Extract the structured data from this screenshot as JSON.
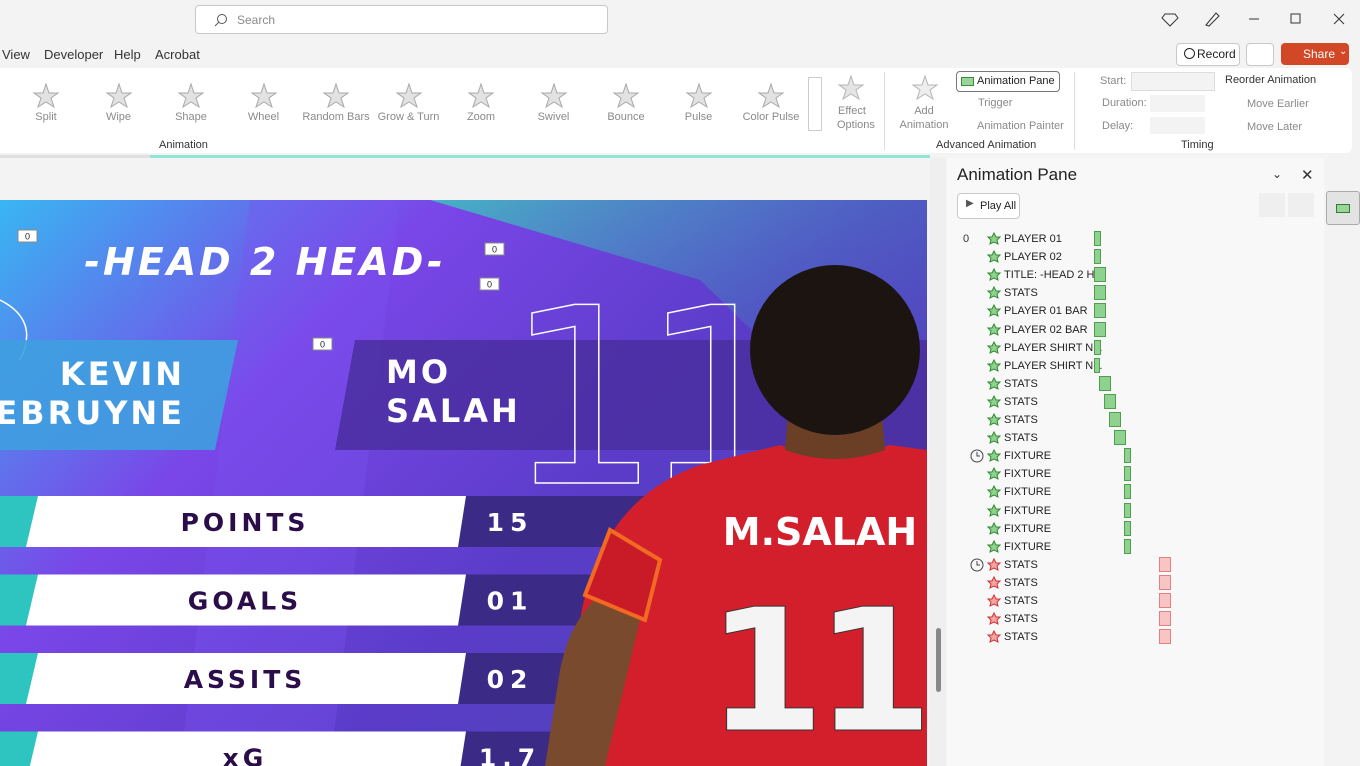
{
  "window": {
    "search": "Search",
    "menu": [
      "View",
      "Developer",
      "Help",
      "Acrobat"
    ],
    "record": "Record",
    "share": "Share"
  },
  "ribbon": {
    "animations": [
      "Split",
      "Wipe",
      "Shape",
      "Wheel",
      "Random Bars",
      "Grow & Turn",
      "Zoom",
      "Swivel",
      "Bounce",
      "Pulse",
      "Color Pulse"
    ],
    "effect_options": "Effect Options",
    "animation_group": "Animation",
    "add_animation": "Add Animation",
    "animation_pane": "Animation Pane",
    "trigger": "Trigger",
    "animation_painter": "Animation Painter",
    "advanced_group": "Advanced Animation",
    "start": "Start:",
    "duration": "Duration:",
    "delay": "Delay:",
    "reorder": "Reorder Animation",
    "move_earlier": "Move Earlier",
    "move_later": "Move Later",
    "timing_group": "Timing"
  },
  "pane": {
    "title": "Animation Pane",
    "play_all": "Play All",
    "order": "0",
    "items": [
      "PLAYER 01",
      "PLAYER 02",
      "TITLE: -HEAD 2 H...",
      "STATS",
      "PLAYER 01 BAR",
      "PLAYER 02 BAR",
      "PLAYER SHIRT N...",
      "PLAYER SHIRT N...",
      "STATS",
      "STATS",
      "STATS",
      "STATS",
      "FIXTURE",
      "FIXTURE",
      "FIXTURE",
      "FIXTURE",
      "FIXTURE",
      "FIXTURE",
      "STATS",
      "STATS",
      "STATS",
      "STATS",
      "STATS"
    ]
  },
  "slide": {
    "tags": [
      "0",
      "0",
      "0",
      "0"
    ],
    "title": "-HEAD 2 HEAD-",
    "player1": [
      "KEVIN",
      "DEBRUYNE"
    ],
    "player2": [
      "MO",
      "SALAH"
    ],
    "number": "11",
    "rows": [
      {
        "label": "POINTS",
        "value": "15"
      },
      {
        "label": "GOALS",
        "value": "01"
      },
      {
        "label": "ASSITS",
        "value": "02"
      },
      {
        "label": "xG",
        "value": "1.7"
      }
    ],
    "shirt_name": "M.SALAH",
    "shirt_number": "11"
  }
}
